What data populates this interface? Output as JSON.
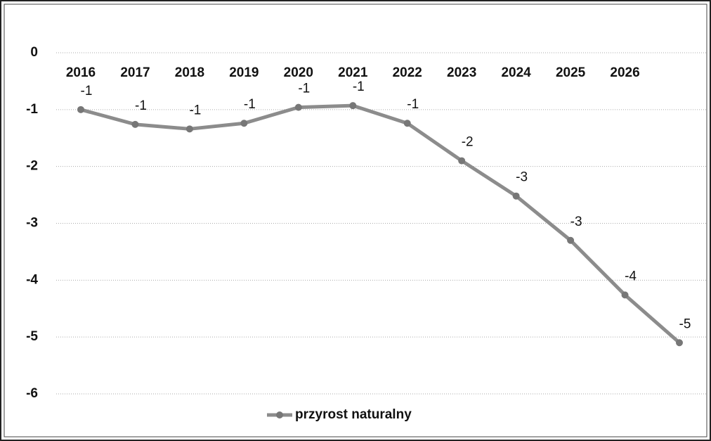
{
  "chart_data": {
    "type": "line",
    "categories": [
      "2016",
      "2017",
      "2018",
      "2019",
      "2020",
      "2021",
      "2022",
      "2023",
      "2024",
      "2025",
      "2026",
      null
    ],
    "series": [
      {
        "name": "przyrost naturalny",
        "color": "#8c8c8c",
        "values": [
          -1.0,
          -1.26,
          -1.34,
          -1.24,
          -0.96,
          -0.93,
          -1.24,
          -1.9,
          -2.52,
          -3.3,
          -4.26,
          -5.1
        ],
        "value_labels": [
          "-1",
          "-1",
          "-1",
          "-1",
          "-1",
          "-1",
          "-1",
          "-2",
          "-3",
          "-3",
          "-4",
          "-5"
        ]
      }
    ],
    "ylim": [
      -6,
      0
    ],
    "yticks": [
      0,
      -1,
      -2,
      -3,
      -4,
      -5,
      -6
    ],
    "grid": true,
    "legend": "bottom"
  }
}
